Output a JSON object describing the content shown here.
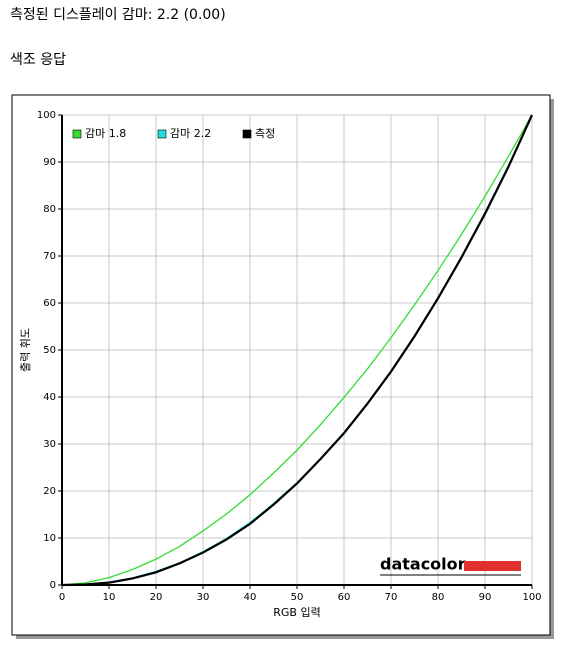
{
  "header": {
    "title": "측정된 디스플레이 감마: 2.2 (0.00)",
    "subtitle": "색조 응답"
  },
  "chart_data": {
    "type": "line",
    "x_label": "RGB 입력",
    "y_label": "출력 휘도",
    "logo": "datacolor",
    "x": [
      0,
      5,
      10,
      15,
      20,
      25,
      30,
      35,
      40,
      45,
      50,
      55,
      60,
      65,
      70,
      75,
      80,
      85,
      90,
      95,
      100
    ],
    "series": [
      {
        "name": "감마 1.8",
        "color": "#33dd33",
        "values": [
          0,
          0.46,
          1.58,
          3.3,
          5.5,
          8.2,
          11.5,
          15.1,
          19.2,
          23.8,
          28.7,
          34.1,
          39.9,
          46.0,
          52.6,
          59.6,
          66.9,
          74.6,
          82.7,
          91.2,
          100
        ]
      },
      {
        "name": "감마 2.2",
        "color": "#22dddd",
        "values": [
          0,
          0.14,
          0.63,
          1.5,
          2.9,
          4.7,
          7.1,
          9.9,
          13.3,
          17.3,
          21.8,
          26.9,
          32.5,
          38.7,
          45.6,
          53.1,
          61.2,
          69.9,
          79.3,
          89.3,
          100
        ]
      },
      {
        "name": "측정",
        "color": "#000000",
        "values": [
          0,
          0.1,
          0.5,
          1.4,
          2.7,
          4.6,
          6.9,
          9.7,
          13.0,
          17.1,
          21.6,
          26.8,
          32.3,
          38.6,
          45.4,
          52.9,
          61.0,
          69.7,
          79.0,
          89.0,
          100
        ]
      }
    ],
    "xlim": [
      0,
      100
    ],
    "ylim": [
      0,
      100
    ],
    "xticks": [
      0,
      10,
      20,
      30,
      40,
      50,
      60,
      70,
      80,
      90,
      100
    ],
    "yticks": [
      0,
      10,
      20,
      30,
      40,
      50,
      60,
      70,
      80,
      90,
      100
    ],
    "grid": true,
    "legend": "top-left"
  }
}
